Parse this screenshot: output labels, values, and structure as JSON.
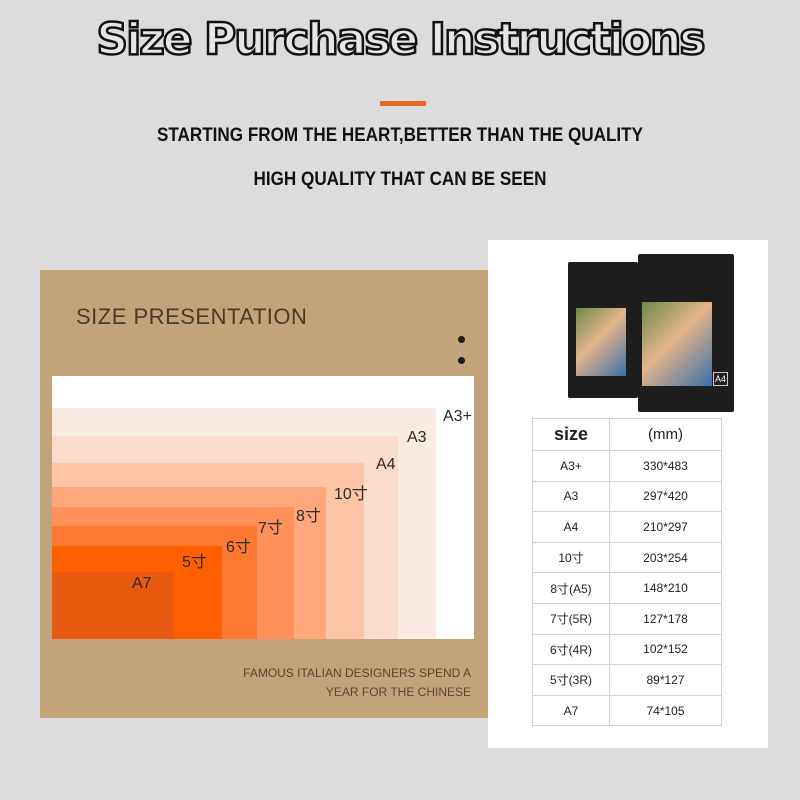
{
  "header": {
    "title": "Size Purchase Instructions",
    "subtitle1": "STARTING FROM THE HEART,BETTER THAN THE QUALITY",
    "subtitle2": "HIGH QUALITY THAT CAN BE SEEN",
    "accent_color": "#e8692a"
  },
  "presentation": {
    "title": "SIZE PRESENTATION",
    "sizes": [
      {
        "label": "A3+",
        "color": "#ffffff"
      },
      {
        "label": "A3",
        "color": "#f9ebe2"
      },
      {
        "label": "A4",
        "color": "#fbdccb"
      },
      {
        "label": "10寸",
        "color": "#fcc6a6"
      },
      {
        "label": "8寸",
        "color": "#fda77a"
      },
      {
        "label": "7寸",
        "color": "#fe915a"
      },
      {
        "label": "6寸",
        "color": "#fe7a33"
      },
      {
        "label": "5寸",
        "color": "#ff5f00"
      },
      {
        "label": "A7",
        "color": "#e85a10"
      }
    ],
    "footer_line1": "FAMOUS ITALIAN DESIGNERS SPEND A",
    "footer_line2": "YEAR FOR THE CHINESE"
  },
  "table": {
    "headers": [
      "size",
      "(mm)"
    ],
    "rows": [
      [
        "A3+",
        "330*483"
      ],
      [
        "A3",
        "297*420"
      ],
      [
        "A4",
        "210*297"
      ],
      [
        "10寸",
        "203*254"
      ],
      [
        "8寸(A5)",
        "148*210"
      ],
      [
        "7寸(5R)",
        "127*178"
      ],
      [
        "6寸(4R)",
        "102*152"
      ],
      [
        "5寸(3R)",
        "89*127"
      ],
      [
        "A7",
        "74*105"
      ]
    ]
  },
  "product": {
    "box_label": "A4"
  }
}
